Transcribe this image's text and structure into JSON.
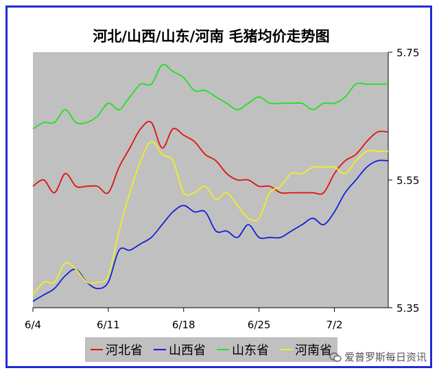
{
  "chart_data": {
    "type": "line",
    "title": "河北/山西/山东/河南 毛猪均价走势图",
    "ylim": [
      5.35,
      5.75
    ],
    "y_ticks": [
      "5.75",
      "5.55",
      "5.35"
    ],
    "x_range": [
      0,
      33
    ],
    "x_ticks": [
      {
        "label": "6/4",
        "x": 0
      },
      {
        "label": "6/11",
        "x": 7
      },
      {
        "label": "6/18",
        "x": 14
      },
      {
        "label": "6/25",
        "x": 21
      },
      {
        "label": "7/2",
        "x": 28
      }
    ],
    "grid": false,
    "legend_position": "bottom",
    "series": [
      {
        "name": "河北省",
        "color": "#e01010",
        "x": [
          0,
          1,
          2,
          3,
          4,
          5,
          6,
          7,
          8,
          9,
          10,
          11,
          12,
          13,
          14,
          15,
          16,
          17,
          18,
          19,
          20,
          21,
          22,
          23,
          24,
          25,
          26,
          27,
          28,
          29,
          30,
          31,
          32,
          33
        ],
        "values": [
          5.54,
          5.55,
          5.53,
          5.56,
          5.54,
          5.54,
          5.54,
          5.53,
          5.57,
          5.6,
          5.63,
          5.64,
          5.6,
          5.63,
          5.62,
          5.61,
          5.59,
          5.58,
          5.56,
          5.55,
          5.55,
          5.54,
          5.54,
          5.53,
          5.53,
          5.53,
          5.53,
          5.53,
          5.56,
          5.58,
          5.59,
          5.61,
          5.625,
          5.625
        ]
      },
      {
        "name": "山西省",
        "color": "#1020d8",
        "x": [
          0,
          1,
          2,
          3,
          4,
          5,
          6,
          7,
          8,
          9,
          10,
          11,
          12,
          13,
          14,
          15,
          16,
          17,
          18,
          19,
          20,
          21,
          22,
          23,
          24,
          25,
          26,
          27,
          28,
          29,
          30,
          31,
          32,
          33
        ],
        "values": [
          5.36,
          5.37,
          5.38,
          5.4,
          5.41,
          5.39,
          5.38,
          5.39,
          5.44,
          5.44,
          5.45,
          5.46,
          5.48,
          5.5,
          5.51,
          5.5,
          5.5,
          5.47,
          5.47,
          5.46,
          5.48,
          5.46,
          5.46,
          5.46,
          5.47,
          5.48,
          5.49,
          5.48,
          5.5,
          5.53,
          5.55,
          5.57,
          5.58,
          5.58
        ]
      },
      {
        "name": "山东省",
        "color": "#20e020",
        "x": [
          0,
          1,
          2,
          3,
          4,
          5,
          6,
          7,
          8,
          9,
          10,
          11,
          12,
          13,
          14,
          15,
          16,
          17,
          18,
          19,
          20,
          21,
          22,
          23,
          24,
          25,
          26,
          27,
          28,
          29,
          30,
          31,
          32,
          33
        ],
        "values": [
          5.63,
          5.64,
          5.64,
          5.66,
          5.64,
          5.64,
          5.65,
          5.67,
          5.66,
          5.68,
          5.7,
          5.7,
          5.73,
          5.72,
          5.71,
          5.69,
          5.69,
          5.68,
          5.67,
          5.66,
          5.67,
          5.68,
          5.67,
          5.67,
          5.67,
          5.67,
          5.66,
          5.67,
          5.67,
          5.68,
          5.7,
          5.7,
          5.7,
          5.7
        ]
      },
      {
        "name": "河南省",
        "color": "#f0f020",
        "x": [
          0,
          1,
          2,
          3,
          4,
          5,
          6,
          7,
          8,
          9,
          10,
          11,
          12,
          13,
          14,
          15,
          16,
          17,
          18,
          19,
          20,
          21,
          22,
          23,
          24,
          25,
          26,
          27,
          28,
          29,
          30,
          31,
          32,
          33
        ],
        "values": [
          5.37,
          5.39,
          5.39,
          5.42,
          5.41,
          5.39,
          5.39,
          5.4,
          5.47,
          5.53,
          5.58,
          5.61,
          5.59,
          5.58,
          5.53,
          5.53,
          5.54,
          5.52,
          5.53,
          5.51,
          5.49,
          5.49,
          5.53,
          5.54,
          5.56,
          5.56,
          5.57,
          5.57,
          5.57,
          5.56,
          5.58,
          5.595,
          5.595,
          5.595
        ]
      }
    ]
  },
  "watermark": {
    "text": "爱普罗斯每日资讯",
    "icon": "wechat-icon"
  }
}
